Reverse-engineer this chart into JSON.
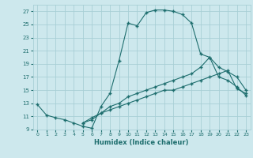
{
  "xlabel": "Humidex (Indice chaleur)",
  "bg_color": "#cde8ed",
  "grid_color": "#a8cfd6",
  "line_color": "#1e6e6e",
  "xlim": [
    -0.5,
    23.5
  ],
  "ylim": [
    9,
    28
  ],
  "xticks": [
    0,
    1,
    2,
    3,
    4,
    5,
    6,
    7,
    8,
    9,
    10,
    11,
    12,
    13,
    14,
    15,
    16,
    17,
    18,
    19,
    20,
    21,
    22,
    23
  ],
  "yticks": [
    9,
    11,
    13,
    15,
    17,
    19,
    21,
    23,
    25,
    27
  ],
  "curve1_x": [
    0,
    1,
    2,
    3,
    4,
    5,
    6,
    7,
    8,
    9,
    10,
    11,
    12,
    13,
    14,
    15,
    16,
    17,
    18,
    19,
    20,
    21,
    22,
    23
  ],
  "curve1_y": [
    12.8,
    11.2,
    10.8,
    10.5,
    10.0,
    9.5,
    9.2,
    12.5,
    14.5,
    19.5,
    25.2,
    24.8,
    26.8,
    27.2,
    27.2,
    27.0,
    26.5,
    25.2,
    20.5,
    20.0,
    17.0,
    16.5,
    15.5,
    14.2
  ],
  "curve2_x": [
    5,
    6,
    7,
    8,
    9,
    10,
    11,
    12,
    13,
    14,
    15,
    16,
    17,
    18,
    19,
    20,
    21,
    22,
    23
  ],
  "curve2_y": [
    10.0,
    10.5,
    11.5,
    12.5,
    13.0,
    14.0,
    14.5,
    15.0,
    15.5,
    16.0,
    16.5,
    17.0,
    17.5,
    18.5,
    20.0,
    18.5,
    17.8,
    17.0,
    15.0
  ],
  "curve3_x": [
    5,
    6,
    7,
    8,
    9,
    10,
    11,
    12,
    13,
    14,
    15,
    16,
    17,
    18,
    19,
    20,
    21,
    22,
    23
  ],
  "curve3_y": [
    10.0,
    10.8,
    11.5,
    12.0,
    12.5,
    13.0,
    13.5,
    14.0,
    14.5,
    15.0,
    15.0,
    15.5,
    16.0,
    16.5,
    17.0,
    17.5,
    18.0,
    15.2,
    14.5
  ]
}
